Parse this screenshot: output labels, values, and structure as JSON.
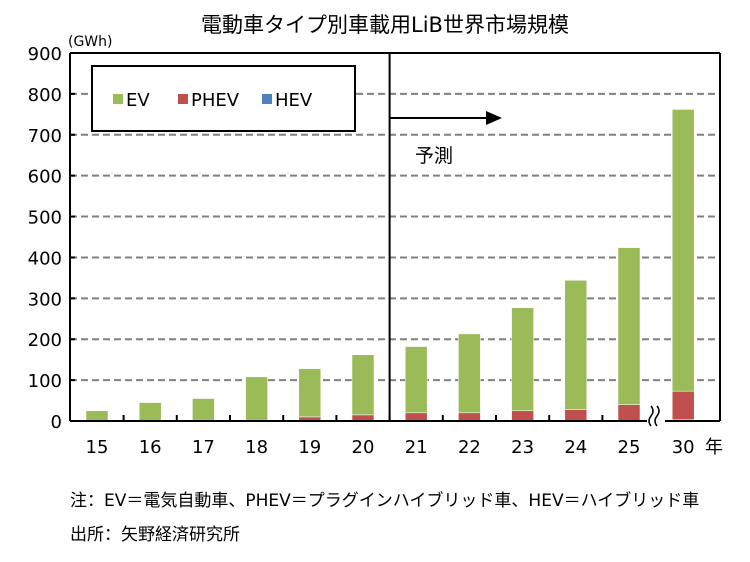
{
  "chart_data": {
    "type": "bar",
    "stacked": true,
    "title": "電動車タイプ別車載用LiB世界市場規模",
    "ylabel": "(GWh)",
    "xlabel": "年",
    "ylim": [
      0,
      900
    ],
    "yticks": [
      0,
      100,
      200,
      300,
      400,
      500,
      600,
      700,
      800,
      900
    ],
    "grid": true,
    "legend_position": "top-left",
    "categories": [
      "15",
      "16",
      "17",
      "18",
      "19",
      "20",
      "21",
      "22",
      "23",
      "24",
      "25",
      "30"
    ],
    "series": [
      {
        "name": "EV",
        "color": "#9bbb59",
        "values": [
          25,
          45,
          53,
          106,
          118,
          147,
          162,
          193,
          252,
          316,
          384,
          689
        ]
      },
      {
        "name": "PHEV",
        "color": "#c0504d",
        "values": [
          0,
          0,
          2,
          2,
          10,
          15,
          20,
          20,
          25,
          28,
          40,
          70
        ]
      },
      {
        "name": "HEV",
        "color": "#4f81bd",
        "values": [
          0,
          0,
          0,
          0,
          0,
          0,
          0,
          0,
          0,
          0,
          0,
          3
        ]
      }
    ],
    "forecast_label": "予測",
    "forecast_start_index": 6,
    "axis_break_before_index": 11
  },
  "notes": {
    "line1": "注：EV＝電気自動車、PHEV＝プラグインハイブリッド車、HEV＝ハイブリッド車",
    "line2": "出所：矢野経済研究所"
  }
}
